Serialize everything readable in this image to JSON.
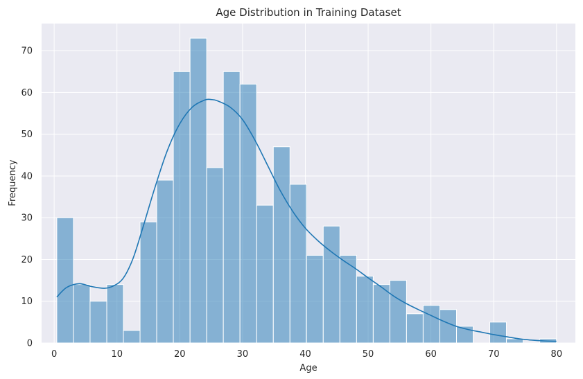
{
  "chart_data": {
    "type": "bar",
    "subtype": "histogram-with-kde",
    "title": "Age Distribution in Training Dataset",
    "xlabel": "Age",
    "ylabel": "Frequency",
    "xlim": [
      -2.0,
      83.0
    ],
    "ylim": [
      0,
      76.5
    ],
    "xticks": [
      0,
      10,
      20,
      30,
      40,
      50,
      60,
      70,
      80
    ],
    "yticks": [
      0,
      10,
      20,
      30,
      40,
      50,
      60,
      70
    ],
    "grid": true,
    "legend": "none",
    "colors": {
      "background": "#eaeaf2",
      "grid": "#ffffff",
      "bar_fill": "#1f77b4",
      "bar_edge": "#ffffff",
      "kde_line": "#1f77b4"
    },
    "bin_edges": [
      0.42,
      3.07,
      5.72,
      8.38,
      11.03,
      13.68,
      16.33,
      18.98,
      21.64,
      24.29,
      26.94,
      29.59,
      32.24,
      34.9,
      37.55,
      40.2,
      42.85,
      45.5,
      48.16,
      50.81,
      53.46,
      56.11,
      58.76,
      61.42,
      64.07,
      66.72,
      69.37,
      72.02,
      74.68,
      77.33,
      79.98
    ],
    "counts": [
      30,
      14,
      10,
      14,
      3,
      29,
      39,
      65,
      73,
      42,
      65,
      62,
      33,
      47,
      38,
      21,
      28,
      21,
      16,
      14,
      15,
      7,
      9,
      8,
      4,
      0,
      5,
      1,
      0,
      1
    ],
    "kde": {
      "x": [
        0.42,
        2,
        4,
        6,
        8,
        9.5,
        11,
        12.5,
        14,
        16,
        18,
        20,
        22,
        24,
        25,
        26,
        28,
        30,
        32,
        34,
        36,
        38,
        40,
        42,
        44,
        46,
        48,
        50,
        52,
        54,
        56,
        58,
        60,
        62,
        64,
        66,
        68,
        70,
        72,
        74,
        76,
        78,
        79.98
      ],
      "y": [
        11,
        13.3,
        14.2,
        13.5,
        13.1,
        13.7,
        15.5,
        20,
        27,
        37,
        46,
        52.5,
        56.5,
        58.2,
        58.3,
        58.0,
        56.5,
        53.5,
        48.5,
        42.5,
        36.5,
        31.5,
        27.5,
        24.5,
        22.0,
        19.8,
        17.8,
        15.6,
        13.5,
        11.3,
        9.5,
        8.0,
        6.6,
        5.2,
        4.0,
        3.2,
        2.6,
        2.0,
        1.5,
        1.0,
        0.7,
        0.5,
        0.4
      ]
    }
  }
}
